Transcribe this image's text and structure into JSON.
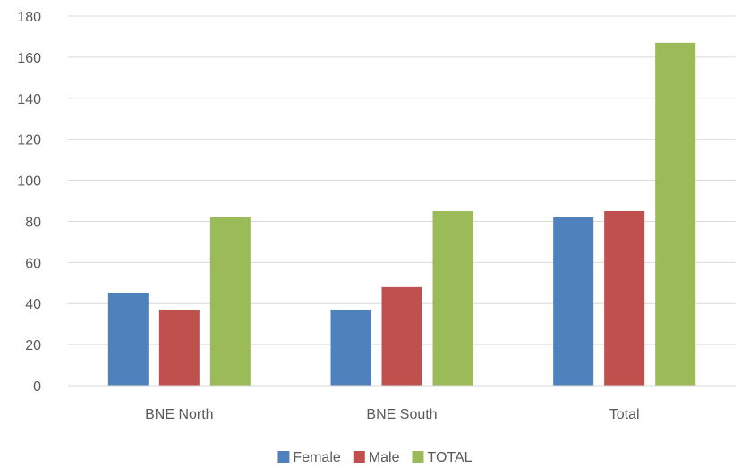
{
  "chart_data": {
    "type": "bar",
    "title": "",
    "xlabel": "",
    "ylabel": "",
    "categories": [
      "BNE North",
      "BNE South",
      "Total"
    ],
    "series": [
      {
        "name": "Female",
        "color": "#4f81bd",
        "values": [
          45,
          37,
          82
        ]
      },
      {
        "name": "Male",
        "color": "#c0504d",
        "values": [
          37,
          48,
          85
        ]
      },
      {
        "name": "TOTAL",
        "color": "#9bbb59",
        "values": [
          82,
          85,
          167
        ]
      }
    ],
    "ylim": [
      0,
      180
    ],
    "yticks": [
      0,
      20,
      40,
      60,
      80,
      100,
      120,
      140,
      160,
      180
    ],
    "grid": true,
    "legend_position": "bottom"
  }
}
